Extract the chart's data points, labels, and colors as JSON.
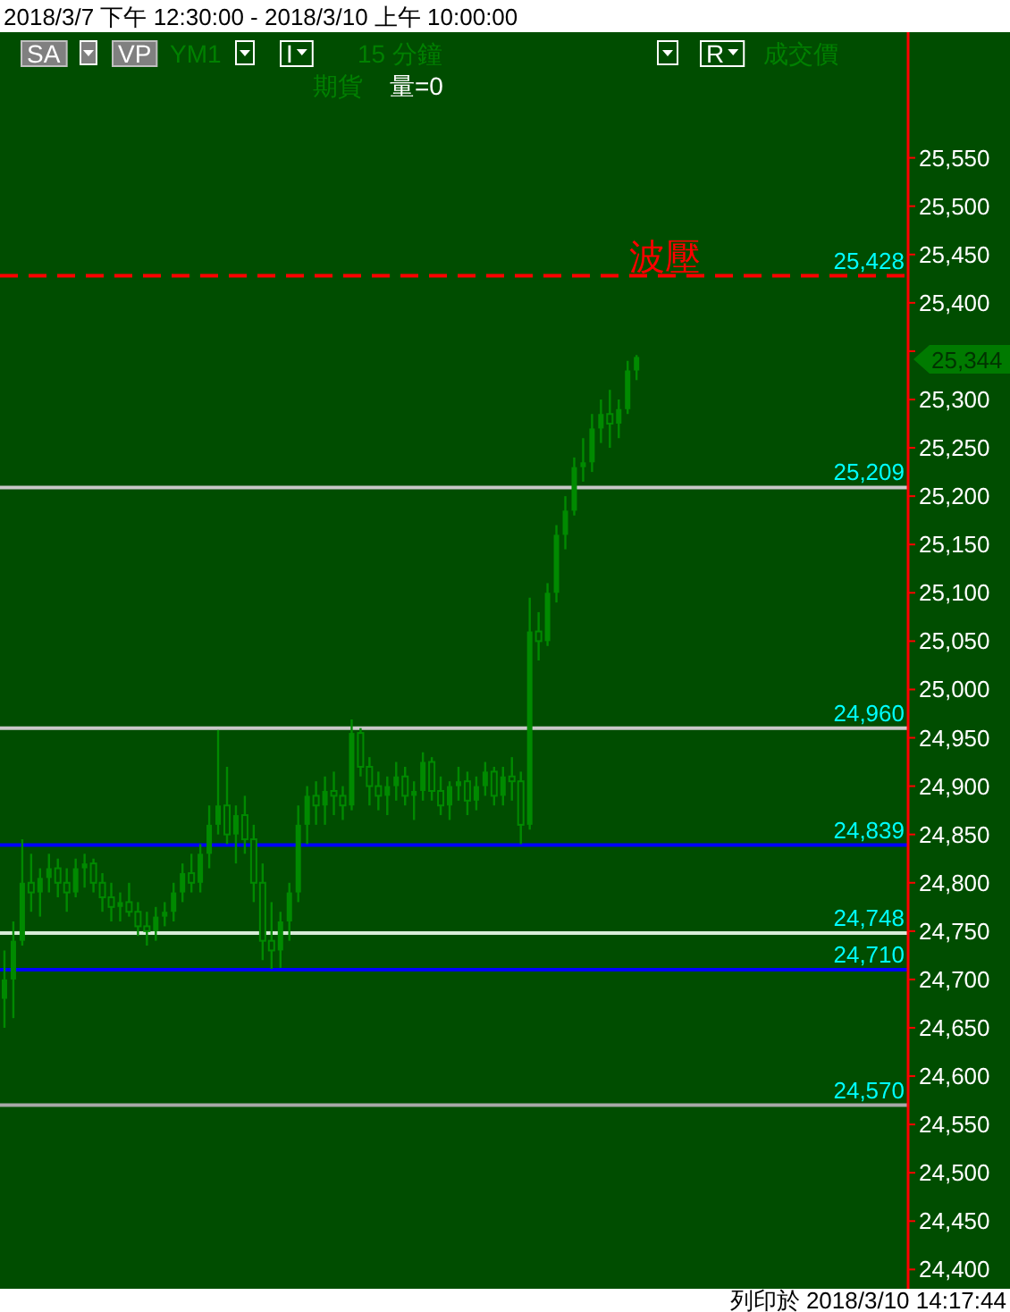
{
  "chart_data": {
    "type": "candlestick",
    "title": "2018/3/7 下午 12:30:00 - 2018/3/10 上午 10:00:00",
    "categories": [
      null,
      null,
      null,
      null,
      null,
      null,
      null,
      null,
      null,
      null,
      null,
      null,
      null,
      null,
      null,
      null,
      null,
      null,
      null,
      null,
      null,
      null,
      null,
      null,
      null,
      null,
      null,
      null,
      null,
      null,
      null,
      null,
      null,
      null,
      null,
      null,
      null,
      null,
      null,
      null,
      null,
      null,
      null,
      null,
      null,
      null,
      null,
      null,
      null,
      null,
      null,
      null,
      null,
      null,
      null,
      null,
      null,
      null,
      null,
      null,
      null,
      null,
      null,
      null,
      null,
      null,
      null,
      null,
      null,
      null,
      null,
      null,
      null,
      null,
      null,
      null,
      null,
      null,
      null,
      null,
      null,
      null,
      null,
      null,
      null,
      null,
      null,
      null,
      null,
      null,
      null,
      null,
      null,
      null,
      null,
      null,
      null,
      null,
      null,
      null,
      null,
      null
    ],
    "ohlc": [
      [
        24680,
        24730,
        24650,
        24700
      ],
      [
        24700,
        24760,
        24660,
        24740
      ],
      [
        24740,
        24845,
        24735,
        24800
      ],
      [
        24800,
        24830,
        24770,
        24790
      ],
      [
        24790,
        24815,
        24765,
        24805
      ],
      [
        24805,
        24830,
        24790,
        24815
      ],
      [
        24815,
        24825,
        24785,
        24800
      ],
      [
        24800,
        24815,
        24770,
        24790
      ],
      [
        24790,
        24825,
        24785,
        24815
      ],
      [
        24815,
        24830,
        24795,
        24820
      ],
      [
        24820,
        24825,
        24790,
        24800
      ],
      [
        24800,
        24810,
        24770,
        24785
      ],
      [
        24785,
        24800,
        24760,
        24775
      ],
      [
        24775,
        24790,
        24760,
        24780
      ],
      [
        24780,
        24800,
        24765,
        24770
      ],
      [
        24770,
        24780,
        24745,
        24755
      ],
      [
        24755,
        24770,
        24735,
        24750
      ],
      [
        24750,
        24775,
        24740,
        24765
      ],
      [
        24765,
        24780,
        24755,
        24770
      ],
      [
        24770,
        24800,
        24760,
        24790
      ],
      [
        24790,
        24820,
        24780,
        24810
      ],
      [
        24810,
        24830,
        24790,
        24800
      ],
      [
        24800,
        24840,
        24790,
        24830
      ],
      [
        24830,
        24880,
        24815,
        24860
      ],
      [
        24860,
        24958,
        24850,
        24880
      ],
      [
        24880,
        24920,
        24840,
        24850
      ],
      [
        24850,
        24880,
        24820,
        24870
      ],
      [
        24870,
        24890,
        24830,
        24845
      ],
      [
        24845,
        24860,
        24780,
        24800
      ],
      [
        24800,
        24820,
        24720,
        24740
      ],
      [
        24740,
        24780,
        24711,
        24730
      ],
      [
        24730,
        24770,
        24712,
        24760
      ],
      [
        24760,
        24800,
        24740,
        24790
      ],
      [
        24790,
        24880,
        24780,
        24860
      ],
      [
        24860,
        24900,
        24840,
        24890
      ],
      [
        24890,
        24905,
        24860,
        24880
      ],
      [
        24880,
        24910,
        24860,
        24895
      ],
      [
        24895,
        24915,
        24870,
        24890
      ],
      [
        24890,
        24900,
        24865,
        24880
      ],
      [
        24880,
        24969,
        24875,
        24955
      ],
      [
        24955,
        24960,
        24910,
        24920
      ],
      [
        24920,
        24930,
        24880,
        24900
      ],
      [
        24900,
        24915,
        24875,
        24890
      ],
      [
        24890,
        24910,
        24870,
        24900
      ],
      [
        24900,
        24925,
        24885,
        24910
      ],
      [
        24910,
        24920,
        24880,
        24890
      ],
      [
        24890,
        24905,
        24865,
        24895
      ],
      [
        24895,
        24935,
        24885,
        24925
      ],
      [
        24925,
        24930,
        24885,
        24895
      ],
      [
        24895,
        24910,
        24870,
        24880
      ],
      [
        24880,
        24905,
        24865,
        24900
      ],
      [
        24900,
        24920,
        24885,
        24905
      ],
      [
        24905,
        24915,
        24870,
        24885
      ],
      [
        24885,
        24910,
        24875,
        24900
      ],
      [
        24900,
        24925,
        24890,
        24915
      ],
      [
        24915,
        24920,
        24880,
        24890
      ],
      [
        24890,
        24920,
        24880,
        24910
      ],
      [
        24910,
        24930,
        24885,
        24905
      ],
      [
        24905,
        24915,
        24840,
        24860
      ],
      [
        24860,
        25095,
        24855,
        25060
      ],
      [
        25060,
        25080,
        25030,
        25050
      ],
      [
        25050,
        25110,
        25045,
        25100
      ],
      [
        25100,
        25170,
        25090,
        25160
      ],
      [
        25160,
        25200,
        25145,
        25185
      ],
      [
        25185,
        25240,
        25180,
        25230
      ],
      [
        25230,
        25260,
        25215,
        25235
      ],
      [
        25235,
        25285,
        25225,
        25270
      ],
      [
        25270,
        25300,
        25255,
        25285
      ],
      [
        25285,
        25310,
        25250,
        25275
      ],
      [
        25275,
        25300,
        25260,
        25290
      ],
      [
        25290,
        25340,
        25285,
        25330
      ],
      [
        25330,
        25346,
        25320,
        25344
      ],
      null,
      null,
      null,
      null,
      null,
      null,
      null,
      null,
      null,
      null,
      null,
      null,
      null,
      null,
      null,
      null,
      null,
      null,
      null,
      null,
      null,
      null,
      null,
      null,
      null,
      null,
      null,
      null,
      null,
      null
    ],
    "color": "#008a00",
    "ylim": [
      24380,
      25680
    ],
    "yticks": [
      {
        "value": 24400,
        "label": "24,400"
      },
      {
        "value": 24450,
        "label": "24,450"
      },
      {
        "value": 24500,
        "label": "24,500"
      },
      {
        "value": 24550,
        "label": "24,550"
      },
      {
        "value": 24600,
        "label": "24,600"
      },
      {
        "value": 24650,
        "label": "24,650"
      },
      {
        "value": 24700,
        "label": "24,700"
      },
      {
        "value": 24750,
        "label": "24,750"
      },
      {
        "value": 24800,
        "label": "24,800"
      },
      {
        "value": 24850,
        "label": "24,850"
      },
      {
        "value": 24900,
        "label": "24,900"
      },
      {
        "value": 24950,
        "label": "24,950"
      },
      {
        "value": 25000,
        "label": "25,000"
      },
      {
        "value": 25050,
        "label": "25,050"
      },
      {
        "value": 25100,
        "label": "25,100"
      },
      {
        "value": 25150,
        "label": "25,150"
      },
      {
        "value": 25200,
        "label": "25,200"
      },
      {
        "value": 25250,
        "label": "25,250"
      },
      {
        "value": 25300,
        "label": "25,300"
      },
      {
        "value": 25350,
        "label": null
      },
      {
        "value": 25400,
        "label": "25,400"
      },
      {
        "value": 25450,
        "label": "25,450"
      },
      {
        "value": 25500,
        "label": "25,500"
      },
      {
        "value": 25550,
        "label": "25,550"
      }
    ],
    "ref_lines": [
      {
        "axis": "y",
        "value": 25428,
        "label": "25,428",
        "color": "#ff0000",
        "line_style": "dashed"
      },
      {
        "axis": "y",
        "value": 25209,
        "label": "25,209",
        "color": "#c8c8c8",
        "line_style": "solid"
      },
      {
        "axis": "y",
        "value": 24960,
        "label": "24,960",
        "color": "#c8c8c8",
        "line_style": "solid"
      },
      {
        "axis": "y",
        "value": 24839,
        "label": "24,839",
        "color": "#0000ff",
        "line_style": "solid"
      },
      {
        "axis": "y",
        "value": 24748,
        "label": "24,748",
        "color": "#d8ecd8",
        "line_style": "solid"
      },
      {
        "axis": "y",
        "value": 24710,
        "label": "24,710",
        "color": "#0000ff",
        "line_style": "solid"
      },
      {
        "axis": "y",
        "value": 24570,
        "label": "24,570",
        "color": "#a8a8a8",
        "line_style": "solid"
      }
    ],
    "annotations": [
      "SA",
      "VP",
      "YM1",
      "I",
      "15 分鐘",
      "R",
      "成交價",
      "期貨",
      "量=0",
      "列印於 2018/3/10 14:17:44",
      "25,344",
      {
        "text": "波壓",
        "y": 25428
      }
    ]
  }
}
